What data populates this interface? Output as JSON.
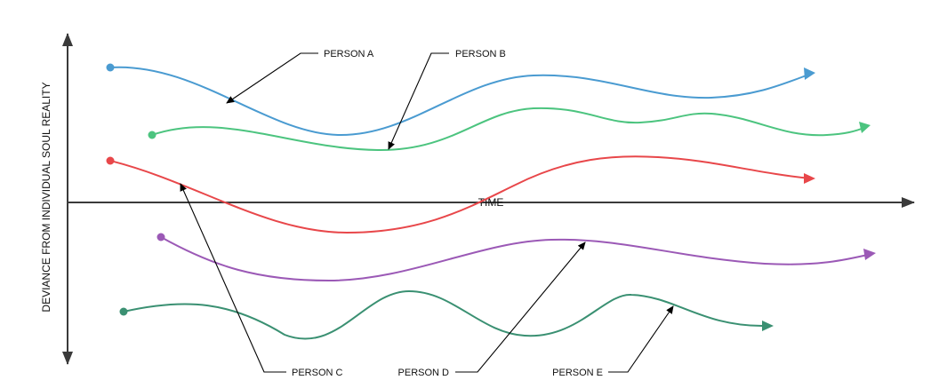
{
  "axes": {
    "y_label": "DEVIANCE FROM INDIVIDUAL SOUL REALITY",
    "x_label": "TIME",
    "axis_color": "#3a3a3a"
  },
  "people": [
    {
      "label": "PERSON A",
      "color": "#4a9bd1"
    },
    {
      "label": "PERSON B",
      "color": "#4cc47f"
    },
    {
      "label": "PERSON C",
      "color": "#e8474a"
    },
    {
      "label": "PERSON D",
      "color": "#9b59b6"
    },
    {
      "label": "PERSON E",
      "color": "#3a9072"
    }
  ]
}
